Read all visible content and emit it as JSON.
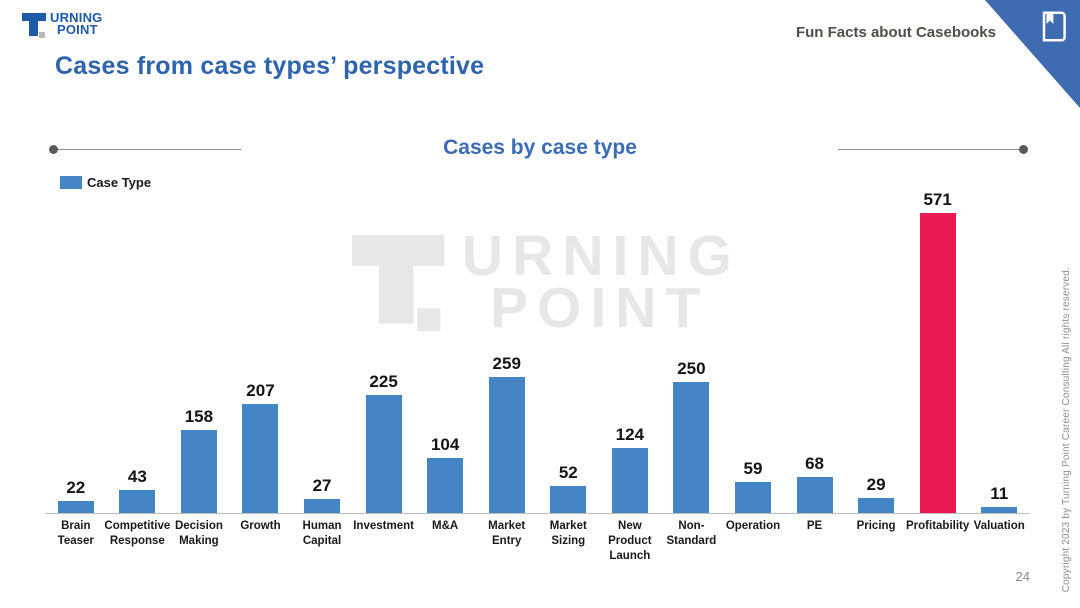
{
  "slide": {
    "logo": {
      "line1": "URNING",
      "line2": "POINT"
    },
    "page_title": "Cases from case types’ perspective",
    "header_right": "Fun Facts about Casebooks",
    "watermark": {
      "line1": "URNING",
      "line2": "POINT"
    },
    "page_number": "24",
    "copyright": "Copyright 2023 by Turning Point Career Consulting All rights reserved."
  },
  "chart": {
    "title": "Cases by case type",
    "legend_label": "Case Type"
  },
  "colors": {
    "bar_blue": "#4685c5",
    "bar_highlight_pink": "#eb1951",
    "title_blue": "#2e63ae",
    "chart_title_blue": "#3a6cb5",
    "corner_triangle_blue": "#3e6bb1",
    "logo_blue": "#1d5aa9"
  },
  "chart_data": {
    "type": "bar",
    "title": "Cases by case type",
    "legend": [
      "Case Type"
    ],
    "legend_position": "top-left",
    "grid": false,
    "xlabel": "",
    "ylabel": "",
    "ylim": [
      0,
      600
    ],
    "categories": [
      "Brain Teaser",
      "Competitive Response",
      "Decision Making",
      "Growth",
      "Human Capital",
      "Investment",
      "M&A",
      "Market Entry",
      "Market Sizing",
      "New Product Launch",
      "Non-Standard",
      "Operation",
      "PE",
      "Pricing",
      "Profitability",
      "Valuation"
    ],
    "category_display": [
      "Brain\nTeaser",
      "Competitive\nResponse",
      "Decision\nMaking",
      "Growth",
      "Human\nCapital",
      "Investment",
      "M&A",
      "Market\nEntry",
      "Market\nSizing",
      "New\nProduct\nLaunch",
      "Non-\nStandard",
      "Operation",
      "PE",
      "Pricing",
      "Profitability",
      "Valuation"
    ],
    "values": [
      22,
      43,
      158,
      207,
      27,
      225,
      104,
      259,
      52,
      124,
      250,
      59,
      68,
      29,
      571,
      11
    ],
    "bar_color": "#4685c5",
    "highlight_category": "Profitability",
    "highlight_color": "#eb1951"
  }
}
